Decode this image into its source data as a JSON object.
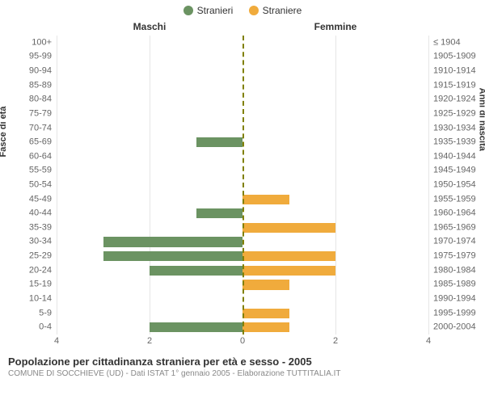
{
  "legend": {
    "male": {
      "label": "Stranieri",
      "color": "#6b9362"
    },
    "female": {
      "label": "Straniere",
      "color": "#f0ab3c"
    }
  },
  "headers": {
    "male": "Maschi",
    "female": "Femmine"
  },
  "axes": {
    "left_title": "Fasce di età",
    "right_title": "Anni di nascita",
    "xmax": 4,
    "xticks": [
      4,
      2,
      0,
      2,
      4
    ],
    "grid_color": "#e6e6e6",
    "center_color": "#808000"
  },
  "rows": [
    {
      "age": "100+",
      "birth": "≤ 1904",
      "m": 0,
      "f": 0
    },
    {
      "age": "95-99",
      "birth": "1905-1909",
      "m": 0,
      "f": 0
    },
    {
      "age": "90-94",
      "birth": "1910-1914",
      "m": 0,
      "f": 0
    },
    {
      "age": "85-89",
      "birth": "1915-1919",
      "m": 0,
      "f": 0
    },
    {
      "age": "80-84",
      "birth": "1920-1924",
      "m": 0,
      "f": 0
    },
    {
      "age": "75-79",
      "birth": "1925-1929",
      "m": 0,
      "f": 0
    },
    {
      "age": "70-74",
      "birth": "1930-1934",
      "m": 0,
      "f": 0
    },
    {
      "age": "65-69",
      "birth": "1935-1939",
      "m": 1,
      "f": 0
    },
    {
      "age": "60-64",
      "birth": "1940-1944",
      "m": 0,
      "f": 0
    },
    {
      "age": "55-59",
      "birth": "1945-1949",
      "m": 0,
      "f": 0
    },
    {
      "age": "50-54",
      "birth": "1950-1954",
      "m": 0,
      "f": 0
    },
    {
      "age": "45-49",
      "birth": "1955-1959",
      "m": 0,
      "f": 1
    },
    {
      "age": "40-44",
      "birth": "1960-1964",
      "m": 1,
      "f": 0
    },
    {
      "age": "35-39",
      "birth": "1965-1969",
      "m": 0,
      "f": 2
    },
    {
      "age": "30-34",
      "birth": "1970-1974",
      "m": 3,
      "f": 0
    },
    {
      "age": "25-29",
      "birth": "1975-1979",
      "m": 3,
      "f": 2
    },
    {
      "age": "20-24",
      "birth": "1980-1984",
      "m": 2,
      "f": 2
    },
    {
      "age": "15-19",
      "birth": "1985-1989",
      "m": 0,
      "f": 1
    },
    {
      "age": "10-14",
      "birth": "1990-1994",
      "m": 0,
      "f": 0
    },
    {
      "age": "5-9",
      "birth": "1995-1999",
      "m": 0,
      "f": 1
    },
    {
      "age": "0-4",
      "birth": "2000-2004",
      "m": 2,
      "f": 1
    }
  ],
  "footer": {
    "title": "Popolazione per cittadinanza straniera per età e sesso - 2005",
    "subtitle": "COMUNE DI SOCCHIEVE (UD) - Dati ISTAT 1° gennaio 2005 - Elaborazione TUTTITALIA.IT"
  }
}
